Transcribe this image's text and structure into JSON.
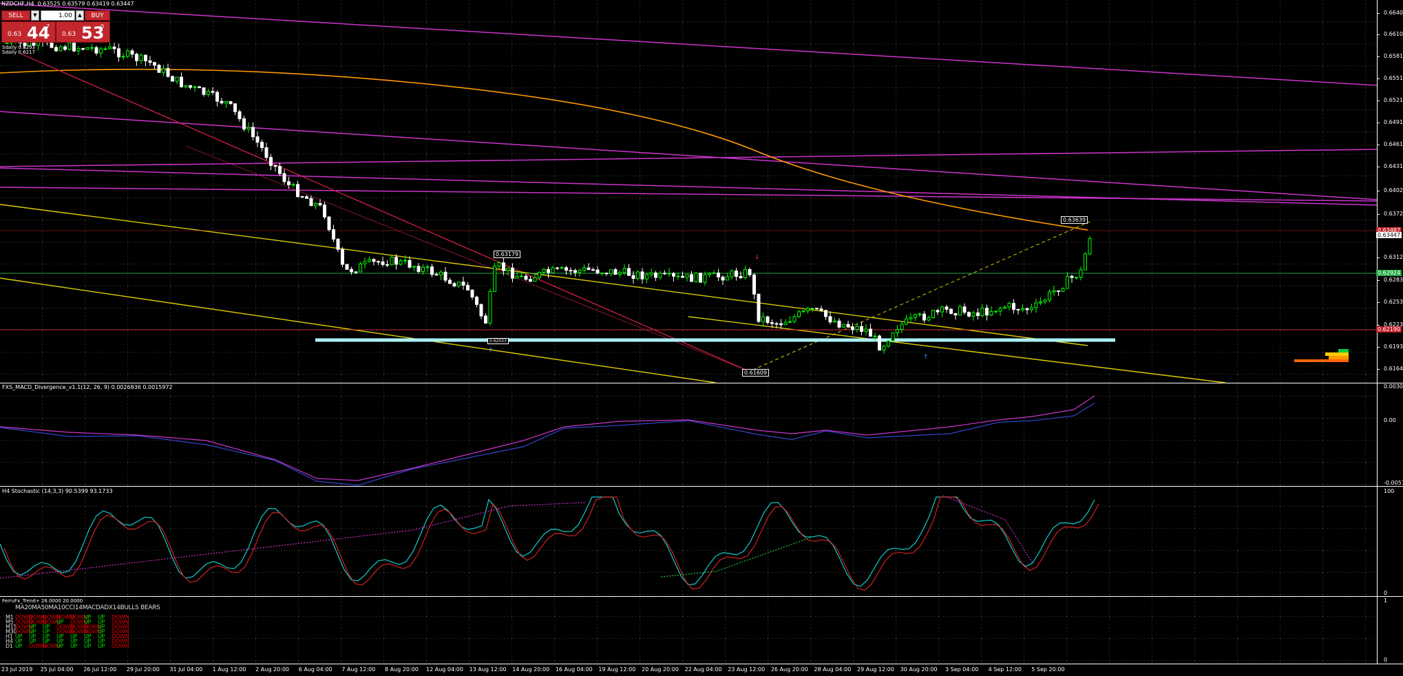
{
  "window": {
    "symbol_title": "NZDCHF,H4",
    "ohlc": "0.63525 0.63579 0.63419 0.63447"
  },
  "trade_panel": {
    "sell_label": "SELL",
    "buy_label": "BUY",
    "lot": "1.00",
    "sell_price_small": "0.63",
    "sell_price_big": "44",
    "sell_price_sup": "7",
    "buy_price_small": "0.63",
    "buy_price_big": "53",
    "buy_price_sup": "0"
  },
  "overlay_labels": {
    "sma1": "Sdaily 0.6293",
    "sma2": "Sdaily 0.6217"
  },
  "price_axis": [
    "0.66405",
    "0.66105",
    "0.65810",
    "0.65510",
    "0.65210",
    "0.64910",
    "0.64615",
    "0.64315",
    "0.64020",
    "0.63720",
    "0.63125",
    "0.62830",
    "0.62530",
    "0.62235",
    "0.61935",
    "0.61640"
  ],
  "price_tags": {
    "bid": "0.63447",
    "red": "0.63487",
    "green": "0.62924",
    "red2": "0.62190"
  },
  "flags": {
    "high_right": "0.63639",
    "high_mid": "0.63179",
    "low": "0.61609",
    "low_left": "0.62033"
  },
  "macd": {
    "title": "FXS_MACD_Divergence_v1.1(12, 26, 9) 0.0026836 0.0015972",
    "axis": [
      "0.0030839",
      "0.00",
      "-0.0057215"
    ]
  },
  "stochastic": {
    "title": "H4 Stochastic (14,3,3) 90.5399 93.1733",
    "axis": [
      "100",
      "0"
    ]
  },
  "trend": {
    "title": "FerruFx_Trend+ 26.0000 20.0000",
    "axis": [
      "1",
      "0"
    ],
    "header": "MA20MA50MA10CCI14MACDADX14BULLS BEARS",
    "rows": [
      {
        "tf": "M1",
        "cells": [
          "DOWN",
          "DOWN",
          "DOWN",
          "DOWN",
          "DOWN",
          "UP",
          "UP",
          "DOWN"
        ]
      },
      {
        "tf": "M5",
        "cells": [
          "DOWN",
          "DOWN",
          "DOWN",
          "UP",
          "DOWN",
          "UP",
          "UP",
          "DOWN"
        ]
      },
      {
        "tf": "M15",
        "cells": [
          "DOWN",
          "UP",
          "UP",
          "DOWN",
          "DOWN",
          "DOWN",
          "UP",
          "DOWN"
        ]
      },
      {
        "tf": "M30",
        "cells": [
          "DOWN",
          "UP",
          "UP",
          "DOWN",
          "DOWN",
          "DOWN",
          "UP",
          "DOWN"
        ]
      },
      {
        "tf": "H1",
        "cells": [
          "UP",
          "UP",
          "UP",
          "UP",
          "UP",
          "UP",
          "UP",
          "DOWN"
        ]
      },
      {
        "tf": "H4",
        "cells": [
          "UP",
          "UP",
          "UP",
          "UP",
          "UP",
          "UP",
          "UP",
          "DOWN"
        ]
      },
      {
        "tf": "D1",
        "cells": [
          "UP",
          "DOWN",
          "DOWN",
          "UP",
          "UP",
          "UP",
          "UP",
          "DOWN"
        ]
      }
    ]
  },
  "time_axis": [
    "23 Jul 2019",
    "25 Jul 04:00",
    "26 Jul 12:00",
    "29 Jul 20:00",
    "31 Jul 04:00",
    "1 Aug 12:00",
    "2 Aug 20:00",
    "6 Aug 04:00",
    "7 Aug 12:00",
    "8 Aug 20:00",
    "12 Aug 04:00",
    "13 Aug 12:00",
    "14 Aug 20:00",
    "16 Aug 04:00",
    "19 Aug 12:00",
    "20 Aug 20:00",
    "22 Aug 04:00",
    "23 Aug 12:00",
    "26 Aug 20:00",
    "28 Aug 04:00",
    "29 Aug 12:00",
    "30 Aug 20:00",
    "3 Sep 04:00",
    "4 Sep 12:00",
    "5 Sep 20:00"
  ],
  "colors": {
    "bull_candle": "#00ff00",
    "bear_candle": "#ffffff",
    "magenta_line": "#cc33cc",
    "orange_ma": "#ff9900",
    "yellow_channel": "#ddcc00",
    "red_channel": "#e0204a",
    "support_line": "#aaf0f5"
  }
}
